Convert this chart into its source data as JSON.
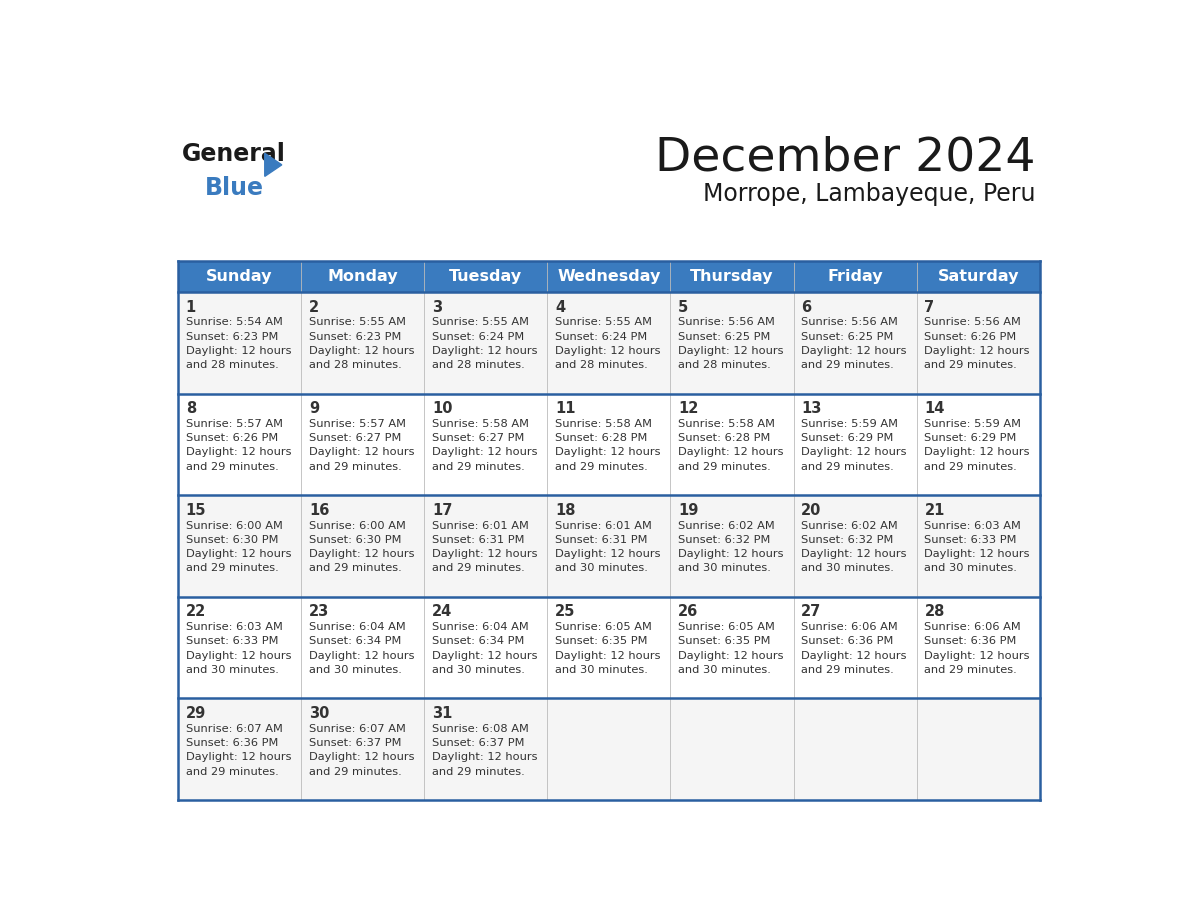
{
  "title": "December 2024",
  "subtitle": "Morrope, Lambayeque, Peru",
  "header_bg_color": "#3a7bbf",
  "header_text_color": "#ffffff",
  "day_names": [
    "Sunday",
    "Monday",
    "Tuesday",
    "Wednesday",
    "Thursday",
    "Friday",
    "Saturday"
  ],
  "calendar": [
    [
      {
        "day": 1,
        "sunrise": "5:54 AM",
        "sunset": "6:23 PM",
        "daylight": "12 hours and 28 minutes."
      },
      {
        "day": 2,
        "sunrise": "5:55 AM",
        "sunset": "6:23 PM",
        "daylight": "12 hours and 28 minutes."
      },
      {
        "day": 3,
        "sunrise": "5:55 AM",
        "sunset": "6:24 PM",
        "daylight": "12 hours and 28 minutes."
      },
      {
        "day": 4,
        "sunrise": "5:55 AM",
        "sunset": "6:24 PM",
        "daylight": "12 hours and 28 minutes."
      },
      {
        "day": 5,
        "sunrise": "5:56 AM",
        "sunset": "6:25 PM",
        "daylight": "12 hours and 28 minutes."
      },
      {
        "day": 6,
        "sunrise": "5:56 AM",
        "sunset": "6:25 PM",
        "daylight": "12 hours and 29 minutes."
      },
      {
        "day": 7,
        "sunrise": "5:56 AM",
        "sunset": "6:26 PM",
        "daylight": "12 hours and 29 minutes."
      }
    ],
    [
      {
        "day": 8,
        "sunrise": "5:57 AM",
        "sunset": "6:26 PM",
        "daylight": "12 hours and 29 minutes."
      },
      {
        "day": 9,
        "sunrise": "5:57 AM",
        "sunset": "6:27 PM",
        "daylight": "12 hours and 29 minutes."
      },
      {
        "day": 10,
        "sunrise": "5:58 AM",
        "sunset": "6:27 PM",
        "daylight": "12 hours and 29 minutes."
      },
      {
        "day": 11,
        "sunrise": "5:58 AM",
        "sunset": "6:28 PM",
        "daylight": "12 hours and 29 minutes."
      },
      {
        "day": 12,
        "sunrise": "5:58 AM",
        "sunset": "6:28 PM",
        "daylight": "12 hours and 29 minutes."
      },
      {
        "day": 13,
        "sunrise": "5:59 AM",
        "sunset": "6:29 PM",
        "daylight": "12 hours and 29 minutes."
      },
      {
        "day": 14,
        "sunrise": "5:59 AM",
        "sunset": "6:29 PM",
        "daylight": "12 hours and 29 minutes."
      }
    ],
    [
      {
        "day": 15,
        "sunrise": "6:00 AM",
        "sunset": "6:30 PM",
        "daylight": "12 hours and 29 minutes."
      },
      {
        "day": 16,
        "sunrise": "6:00 AM",
        "sunset": "6:30 PM",
        "daylight": "12 hours and 29 minutes."
      },
      {
        "day": 17,
        "sunrise": "6:01 AM",
        "sunset": "6:31 PM",
        "daylight": "12 hours and 29 minutes."
      },
      {
        "day": 18,
        "sunrise": "6:01 AM",
        "sunset": "6:31 PM",
        "daylight": "12 hours and 30 minutes."
      },
      {
        "day": 19,
        "sunrise": "6:02 AM",
        "sunset": "6:32 PM",
        "daylight": "12 hours and 30 minutes."
      },
      {
        "day": 20,
        "sunrise": "6:02 AM",
        "sunset": "6:32 PM",
        "daylight": "12 hours and 30 minutes."
      },
      {
        "day": 21,
        "sunrise": "6:03 AM",
        "sunset": "6:33 PM",
        "daylight": "12 hours and 30 minutes."
      }
    ],
    [
      {
        "day": 22,
        "sunrise": "6:03 AM",
        "sunset": "6:33 PM",
        "daylight": "12 hours and 30 minutes."
      },
      {
        "day": 23,
        "sunrise": "6:04 AM",
        "sunset": "6:34 PM",
        "daylight": "12 hours and 30 minutes."
      },
      {
        "day": 24,
        "sunrise": "6:04 AM",
        "sunset": "6:34 PM",
        "daylight": "12 hours and 30 minutes."
      },
      {
        "day": 25,
        "sunrise": "6:05 AM",
        "sunset": "6:35 PM",
        "daylight": "12 hours and 30 minutes."
      },
      {
        "day": 26,
        "sunrise": "6:05 AM",
        "sunset": "6:35 PM",
        "daylight": "12 hours and 30 minutes."
      },
      {
        "day": 27,
        "sunrise": "6:06 AM",
        "sunset": "6:36 PM",
        "daylight": "12 hours and 29 minutes."
      },
      {
        "day": 28,
        "sunrise": "6:06 AM",
        "sunset": "6:36 PM",
        "daylight": "12 hours and 29 minutes."
      }
    ],
    [
      {
        "day": 29,
        "sunrise": "6:07 AM",
        "sunset": "6:36 PM",
        "daylight": "12 hours and 29 minutes."
      },
      {
        "day": 30,
        "sunrise": "6:07 AM",
        "sunset": "6:37 PM",
        "daylight": "12 hours and 29 minutes."
      },
      {
        "day": 31,
        "sunrise": "6:08 AM",
        "sunset": "6:37 PM",
        "daylight": "12 hours and 29 minutes."
      },
      null,
      null,
      null,
      null
    ]
  ],
  "header_color": "#3a7bbf",
  "border_color": "#2a5fa0",
  "text_color": "#333333",
  "day_num_color": "#333333",
  "row_bg_colors": [
    "#f5f5f5",
    "#ffffff",
    "#f5f5f5",
    "#ffffff",
    "#f5f5f5"
  ],
  "font_family": "DejaVu Sans"
}
